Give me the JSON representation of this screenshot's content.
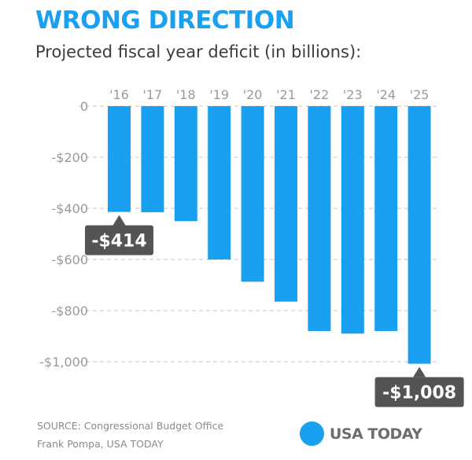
{
  "header": {
    "title": "WRONG DIRECTION",
    "subtitle": "Projected fiscal year deficit (in billions):"
  },
  "footer": {
    "source": "SOURCE:  Congressional Budget Office",
    "credit": "Frank Pompa, USA TODAY",
    "brand": "USA TODAY"
  },
  "colors": {
    "title": "#1aa0f0",
    "bar": "#1aa0f0",
    "callout_bg": "#545454",
    "brand_dot": "#1aa0f0",
    "axis_text": "#9a9a9a",
    "grid": "#c4c4c4"
  },
  "chart_data": {
    "type": "bar",
    "categories": [
      "'16",
      "'17",
      "'18",
      "'19",
      "'20",
      "'21",
      "'22",
      "'23",
      "'24",
      "'25"
    ],
    "values": [
      -414,
      -415,
      -450,
      -600,
      -687,
      -765,
      -880,
      -890,
      -880,
      -1008
    ],
    "ylim": [
      -1000,
      0
    ],
    "yticks": [
      0,
      -200,
      -400,
      -600,
      -800,
      -1000
    ],
    "ytick_labels": [
      "0",
      "-$200",
      "-$400",
      "-$600",
      "-$800",
      "-$1,000"
    ],
    "grid": true,
    "x_axis_position": "top",
    "annotations": [
      {
        "category": "'16",
        "text": "-$414"
      },
      {
        "category": "'25",
        "text": "-$1,008"
      }
    ]
  }
}
